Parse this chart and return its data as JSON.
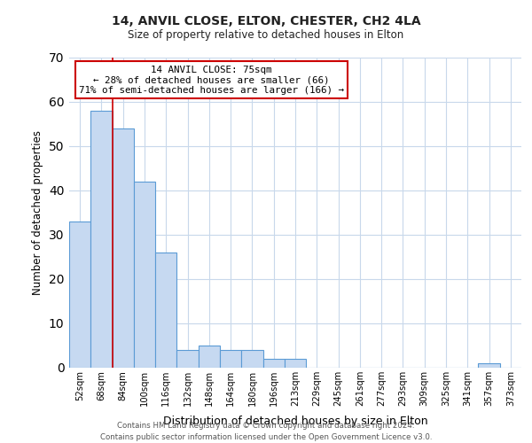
{
  "title": "14, ANVIL CLOSE, ELTON, CHESTER, CH2 4LA",
  "subtitle": "Size of property relative to detached houses in Elton",
  "xlabel": "Distribution of detached houses by size in Elton",
  "ylabel": "Number of detached properties",
  "bar_labels": [
    "52sqm",
    "68sqm",
    "84sqm",
    "100sqm",
    "116sqm",
    "132sqm",
    "148sqm",
    "164sqm",
    "180sqm",
    "196sqm",
    "213sqm",
    "229sqm",
    "245sqm",
    "261sqm",
    "277sqm",
    "293sqm",
    "309sqm",
    "325sqm",
    "341sqm",
    "357sqm",
    "373sqm"
  ],
  "bar_values": [
    33,
    58,
    54,
    42,
    26,
    4,
    5,
    4,
    4,
    2,
    2,
    0,
    0,
    0,
    0,
    0,
    0,
    0,
    0,
    1,
    0
  ],
  "bar_color": "#c6d9f1",
  "bar_edge_color": "#5b9bd5",
  "property_line_color": "#cc0000",
  "property_line_x": 1.5,
  "annotation_title": "14 ANVIL CLOSE: 75sqm",
  "annotation_line1": "← 28% of detached houses are smaller (66)",
  "annotation_line2": "71% of semi-detached houses are larger (166) →",
  "annotation_box_color": "#ffffff",
  "annotation_box_edge_color": "#cc0000",
  "ylim": [
    0,
    70
  ],
  "yticks": [
    0,
    10,
    20,
    30,
    40,
    50,
    60,
    70
  ],
  "footer_line1": "Contains HM Land Registry data © Crown copyright and database right 2024.",
  "footer_line2": "Contains public sector information licensed under the Open Government Licence v3.0.",
  "background_color": "#ffffff",
  "grid_color": "#c8d8eb"
}
